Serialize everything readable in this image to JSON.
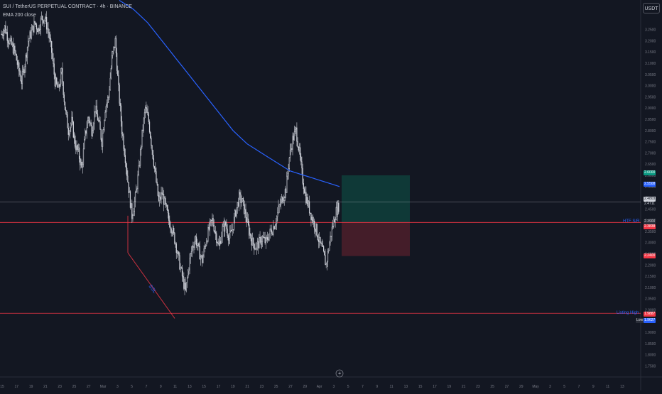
{
  "header": {
    "symbol_line": "SUI / TetherUS PERPETUAL CONTRACT · 4h · BINANCE",
    "indicator_line": "EMA 200 close"
  },
  "currency_button": "USDT",
  "colors": {
    "background": "#131722",
    "bull_candle": "#d1d4dc",
    "bear_candle": "#d1d4dc",
    "ema": "#2962ff",
    "level_line": "#f23645",
    "target_zone": "#0f3d3a",
    "stop_zone": "#4a1e2a",
    "grid": "#1e222d"
  },
  "annotations": {
    "htf_sr": "HTF S/R",
    "listing_high": "Listing High",
    "ssl": "SSL"
  },
  "price_tags": {
    "target": "2.6000",
    "ema": "2.5508",
    "current_a": "2.4803",
    "current_b": "2.4711",
    "entry_a": "2.3900",
    "entry_b": "2.3838",
    "stop": "2.2400",
    "listing_a": "1.9887",
    "low_label": "Low",
    "low_value": "1.9627"
  },
  "chart_data": {
    "type": "candlestick",
    "ylim": [
      1.72,
      3.35
    ],
    "y_ticks": [
      "3.2500",
      "3.2000",
      "3.1500",
      "3.1000",
      "3.0500",
      "3.0000",
      "2.9500",
      "2.9000",
      "2.8500",
      "2.8000",
      "2.7500",
      "2.7000",
      "2.6500",
      "2.6000",
      "2.5500",
      "2.5000",
      "2.4500",
      "2.4000",
      "2.3500",
      "2.3000",
      "2.2500",
      "2.2000",
      "2.1500",
      "2.1000",
      "2.0500",
      "2.0000",
      "1.9500",
      "1.9000",
      "1.8500",
      "1.8000",
      "1.7500"
    ],
    "x_ticks": [
      "15",
      "17",
      "19",
      "21",
      "23",
      "25",
      "27",
      "Mar",
      "3",
      "5",
      "7",
      "9",
      "11",
      "13",
      "15",
      "17",
      "19",
      "21",
      "23",
      "25",
      "27",
      "29",
      "Apr",
      "3",
      "5",
      "7",
      "9",
      "11",
      "13",
      "15",
      "17",
      "19",
      "21",
      "23",
      "25",
      "27",
      "29",
      "May",
      "3",
      "5",
      "7",
      "9",
      "11",
      "13"
    ],
    "series_close": [
      3.23,
      3.26,
      3.21,
      3.18,
      3.15,
      3.08,
      3.02,
      3.1,
      3.2,
      3.24,
      3.28,
      3.25,
      3.3,
      3.3,
      3.24,
      3.15,
      3.02,
      2.98,
      3.06,
      2.9,
      2.8,
      2.84,
      2.74,
      2.7,
      2.63,
      2.78,
      2.86,
      2.8,
      2.9,
      2.84,
      2.75,
      2.9,
      2.95,
      3.12,
      3.2,
      2.98,
      2.8,
      2.68,
      2.54,
      2.42,
      2.5,
      2.62,
      2.78,
      2.9,
      2.84,
      2.72,
      2.6,
      2.48,
      2.52,
      2.46,
      2.4,
      2.36,
      2.3,
      2.22,
      2.15,
      2.08,
      2.2,
      2.28,
      2.32,
      2.26,
      2.22,
      2.3,
      2.36,
      2.4,
      2.34,
      2.28,
      2.36,
      2.38,
      2.32,
      2.36,
      2.44,
      2.5,
      2.48,
      2.42,
      2.35,
      2.3,
      2.28,
      2.3,
      2.32,
      2.3,
      2.34,
      2.36,
      2.4,
      2.46,
      2.5,
      2.54,
      2.68,
      2.76,
      2.8,
      2.7,
      2.58,
      2.5,
      2.45,
      2.4,
      2.36,
      2.3,
      2.26,
      2.2,
      2.3,
      2.38,
      2.44,
      2.47
    ],
    "ema200": [
      3.38,
      3.36,
      3.34,
      3.31,
      3.28,
      3.24,
      3.2,
      3.16,
      3.12,
      3.08,
      3.04,
      3.0,
      2.96,
      2.92,
      2.88,
      2.84,
      2.8,
      2.77,
      2.74,
      2.72,
      2.7,
      2.68,
      2.66,
      2.64,
      2.62,
      2.61,
      2.6,
      2.59,
      2.58,
      2.57,
      2.56,
      2.55
    ],
    "levels": {
      "htf_sr": 2.39,
      "listing_high": 1.985,
      "entry": 2.39,
      "target": 2.6,
      "stop": 2.24
    },
    "ssl_line": {
      "from_price": 2.255,
      "to_price": 1.962
    }
  }
}
